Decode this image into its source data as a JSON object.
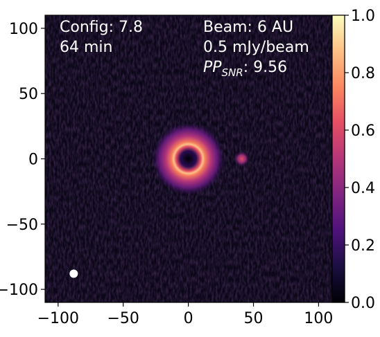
{
  "chart_data": {
    "type": "heatmap",
    "colormap": "magma",
    "background_color": "#0b0718",
    "x_range": [
      -110,
      120
    ],
    "y_range": [
      -110,
      110
    ],
    "x_ticks": [
      -100,
      -50,
      0,
      50,
      100
    ],
    "x_tick_labels": [
      "−100",
      "−50",
      "0",
      "50",
      "100"
    ],
    "y_ticks": [
      100,
      50,
      0,
      -50,
      -100
    ],
    "y_tick_labels": [
      "100",
      "50",
      "0",
      "−50",
      "−100"
    ],
    "colorbar": {
      "range": [
        0.0,
        1.0
      ],
      "ticks": [
        0.0,
        0.2,
        0.4,
        0.6,
        0.8,
        1.0
      ],
      "tick_labels": [
        "0.0",
        "0.2",
        "0.4",
        "0.6",
        "0.8",
        "1.0"
      ]
    },
    "features": {
      "ring": {
        "center": [
          0,
          0
        ],
        "peak_radius": 11,
        "peak_intensity": 0.95,
        "halo_radius": 28,
        "hole_intensity": 0.02
      },
      "point_source": {
        "center": [
          41,
          0
        ],
        "intensity": 0.55
      },
      "beam_marker": {
        "center": [
          -88,
          -88
        ],
        "color": "#ffffff"
      }
    },
    "annotations": {
      "config": "Config: 7.8",
      "time": "64 min",
      "beam": "Beam: 6 AU",
      "sensitivity": "0.5 mJy/beam",
      "ppsnr_label": "PP",
      "ppsnr_sub": "SNR",
      "ppsnr_value": ": 9.56"
    }
  }
}
